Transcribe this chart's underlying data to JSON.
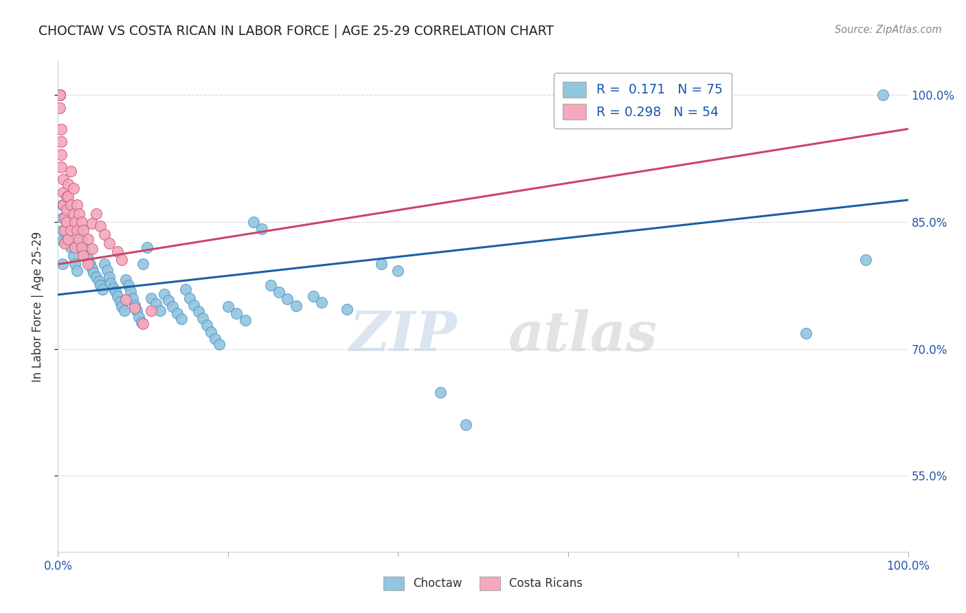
{
  "title": "CHOCTAW VS COSTA RICAN IN LABOR FORCE | AGE 25-29 CORRELATION CHART",
  "source": "Source: ZipAtlas.com",
  "ylabel": "In Labor Force | Age 25-29",
  "xlim": [
    0.0,
    1.0
  ],
  "ylim": [
    0.46,
    1.04
  ],
  "ytick_positions": [
    0.55,
    0.7,
    0.85,
    1.0
  ],
  "ytick_labels": [
    "55.0%",
    "70.0%",
    "85.0%",
    "100.0%"
  ],
  "choctaw_scatter": [
    [
      0.005,
      0.87
    ],
    [
      0.005,
      0.855
    ],
    [
      0.005,
      0.84
    ],
    [
      0.005,
      0.828
    ],
    [
      0.005,
      0.8
    ],
    [
      0.01,
      0.83
    ],
    [
      0.015,
      0.82
    ],
    [
      0.018,
      0.81
    ],
    [
      0.02,
      0.8
    ],
    [
      0.022,
      0.792
    ],
    [
      0.025,
      0.84
    ],
    [
      0.028,
      0.83
    ],
    [
      0.03,
      0.82
    ],
    [
      0.032,
      0.815
    ],
    [
      0.035,
      0.807
    ],
    [
      0.038,
      0.8
    ],
    [
      0.04,
      0.795
    ],
    [
      0.042,
      0.79
    ],
    [
      0.045,
      0.785
    ],
    [
      0.048,
      0.78
    ],
    [
      0.05,
      0.775
    ],
    [
      0.052,
      0.77
    ],
    [
      0.055,
      0.8
    ],
    [
      0.058,
      0.793
    ],
    [
      0.06,
      0.785
    ],
    [
      0.062,
      0.778
    ],
    [
      0.065,
      0.772
    ],
    [
      0.068,
      0.768
    ],
    [
      0.07,
      0.762
    ],
    [
      0.073,
      0.756
    ],
    [
      0.075,
      0.75
    ],
    [
      0.078,
      0.745
    ],
    [
      0.08,
      0.782
    ],
    [
      0.083,
      0.775
    ],
    [
      0.085,
      0.768
    ],
    [
      0.088,
      0.76
    ],
    [
      0.09,
      0.752
    ],
    [
      0.093,
      0.745
    ],
    [
      0.095,
      0.738
    ],
    [
      0.098,
      0.731
    ],
    [
      0.1,
      0.8
    ],
    [
      0.105,
      0.82
    ],
    [
      0.11,
      0.76
    ],
    [
      0.115,
      0.753
    ],
    [
      0.12,
      0.745
    ],
    [
      0.125,
      0.765
    ],
    [
      0.13,
      0.757
    ],
    [
      0.135,
      0.75
    ],
    [
      0.14,
      0.742
    ],
    [
      0.145,
      0.735
    ],
    [
      0.15,
      0.77
    ],
    [
      0.155,
      0.76
    ],
    [
      0.16,
      0.752
    ],
    [
      0.165,
      0.744
    ],
    [
      0.17,
      0.736
    ],
    [
      0.175,
      0.728
    ],
    [
      0.18,
      0.72
    ],
    [
      0.185,
      0.712
    ],
    [
      0.19,
      0.705
    ],
    [
      0.2,
      0.75
    ],
    [
      0.21,
      0.742
    ],
    [
      0.22,
      0.734
    ],
    [
      0.23,
      0.85
    ],
    [
      0.24,
      0.842
    ],
    [
      0.25,
      0.775
    ],
    [
      0.26,
      0.767
    ],
    [
      0.27,
      0.759
    ],
    [
      0.28,
      0.751
    ],
    [
      0.3,
      0.762
    ],
    [
      0.31,
      0.755
    ],
    [
      0.34,
      0.747
    ],
    [
      0.38,
      0.8
    ],
    [
      0.4,
      0.792
    ],
    [
      0.45,
      0.648
    ],
    [
      0.48,
      0.61
    ],
    [
      0.88,
      0.718
    ],
    [
      0.95,
      0.805
    ],
    [
      0.97,
      1.0
    ]
  ],
  "costa_rican_scatter": [
    [
      0.002,
      1.0
    ],
    [
      0.002,
      1.0
    ],
    [
      0.002,
      1.0
    ],
    [
      0.002,
      1.0
    ],
    [
      0.002,
      1.0
    ],
    [
      0.002,
      1.0
    ],
    [
      0.002,
      1.0
    ],
    [
      0.002,
      1.0
    ],
    [
      0.002,
      0.985
    ],
    [
      0.004,
      0.96
    ],
    [
      0.004,
      0.945
    ],
    [
      0.004,
      0.93
    ],
    [
      0.004,
      0.915
    ],
    [
      0.006,
      0.9
    ],
    [
      0.006,
      0.885
    ],
    [
      0.006,
      0.87
    ],
    [
      0.008,
      0.855
    ],
    [
      0.008,
      0.84
    ],
    [
      0.008,
      0.825
    ],
    [
      0.01,
      0.88
    ],
    [
      0.01,
      0.865
    ],
    [
      0.01,
      0.85
    ],
    [
      0.012,
      0.895
    ],
    [
      0.012,
      0.88
    ],
    [
      0.012,
      0.83
    ],
    [
      0.015,
      0.91
    ],
    [
      0.015,
      0.87
    ],
    [
      0.015,
      0.84
    ],
    [
      0.018,
      0.89
    ],
    [
      0.018,
      0.86
    ],
    [
      0.02,
      0.85
    ],
    [
      0.02,
      0.82
    ],
    [
      0.022,
      0.87
    ],
    [
      0.022,
      0.84
    ],
    [
      0.025,
      0.86
    ],
    [
      0.025,
      0.83
    ],
    [
      0.028,
      0.85
    ],
    [
      0.028,
      0.82
    ],
    [
      0.03,
      0.84
    ],
    [
      0.03,
      0.81
    ],
    [
      0.035,
      0.83
    ],
    [
      0.035,
      0.8
    ],
    [
      0.04,
      0.848
    ],
    [
      0.04,
      0.818
    ],
    [
      0.045,
      0.86
    ],
    [
      0.05,
      0.845
    ],
    [
      0.055,
      0.835
    ],
    [
      0.06,
      0.825
    ],
    [
      0.07,
      0.815
    ],
    [
      0.075,
      0.805
    ],
    [
      0.08,
      0.758
    ],
    [
      0.09,
      0.748
    ],
    [
      0.1,
      0.73
    ],
    [
      0.11,
      0.745
    ]
  ],
  "choctaw_line_x": [
    0.0,
    1.0
  ],
  "choctaw_line_y": [
    0.764,
    0.876
  ],
  "costa_rican_line_x": [
    0.0,
    1.0
  ],
  "costa_rican_line_y": [
    0.8,
    0.96
  ],
  "choctaw_color": "#92c5de",
  "choctaw_edge_color": "#5599cc",
  "costa_rican_color": "#f4a8bc",
  "costa_rican_edge_color": "#d06080",
  "choctaw_line_color": "#1a5ea8",
  "costa_rican_line_color": "#cc4466",
  "watermark_zip": "ZIP",
  "watermark_atlas": "atlas",
  "background_color": "#ffffff",
  "grid_color": "#d8d8d8"
}
